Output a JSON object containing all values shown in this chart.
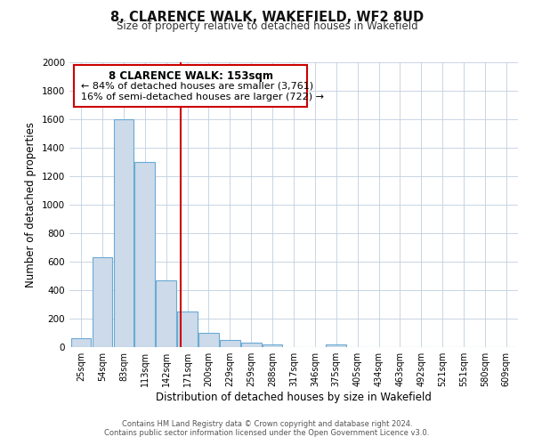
{
  "title": "8, CLARENCE WALK, WAKEFIELD, WF2 8UD",
  "subtitle": "Size of property relative to detached houses in Wakefield",
  "xlabel": "Distribution of detached houses by size in Wakefield",
  "ylabel": "Number of detached properties",
  "bin_labels": [
    "25sqm",
    "54sqm",
    "83sqm",
    "113sqm",
    "142sqm",
    "171sqm",
    "200sqm",
    "229sqm",
    "259sqm",
    "288sqm",
    "317sqm",
    "346sqm",
    "375sqm",
    "405sqm",
    "434sqm",
    "463sqm",
    "492sqm",
    "521sqm",
    "551sqm",
    "580sqm",
    "609sqm"
  ],
  "bar_heights": [
    65,
    630,
    1600,
    1300,
    470,
    250,
    100,
    50,
    30,
    20,
    0,
    0,
    20,
    0,
    0,
    0,
    0,
    0,
    0,
    0,
    0
  ],
  "bar_color": "#ccdaea",
  "bar_edge_color": "#6aaad4",
  "vline_x": 4.67,
  "vline_color": "#cc0000",
  "ylim": [
    0,
    2000
  ],
  "yticks": [
    0,
    200,
    400,
    600,
    800,
    1000,
    1200,
    1400,
    1600,
    1800,
    2000
  ],
  "annotation_title": "8 CLARENCE WALK: 153sqm",
  "annotation_line1": "← 84% of detached houses are smaller (3,761)",
  "annotation_line2": "16% of semi-detached houses are larger (722) →",
  "annotation_box_color": "#ffffff",
  "annotation_box_edge": "#cc0000",
  "footer_line1": "Contains HM Land Registry data © Crown copyright and database right 2024.",
  "footer_line2": "Contains public sector information licensed under the Open Government Licence v3.0.",
  "background_color": "#ffffff",
  "grid_color": "#c0cfdf"
}
